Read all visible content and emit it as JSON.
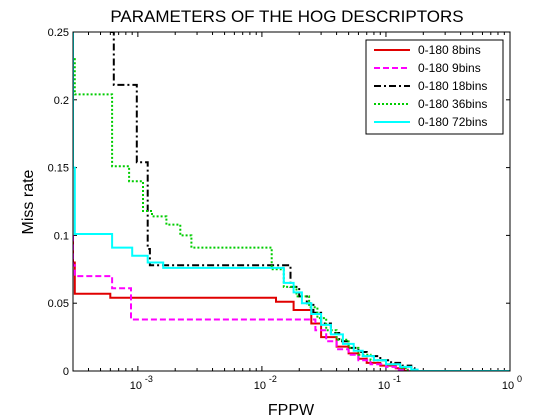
{
  "chart_data": {
    "type": "line",
    "title": "PARAMETERS OF THE HOG DESCRIPTORS",
    "xlabel": "FPPW",
    "ylabel": "Miss rate",
    "x_scale": "log",
    "xlim": [
      0.0003,
      1
    ],
    "ylim": [
      0,
      0.25
    ],
    "x_ticks": [
      {
        "value": 0.001,
        "base": "10",
        "exp": "-3"
      },
      {
        "value": 0.01,
        "base": "10",
        "exp": "-2"
      },
      {
        "value": 0.1,
        "base": "10",
        "exp": "-1"
      },
      {
        "value": 1,
        "base": "10",
        "exp": "0"
      }
    ],
    "y_ticks": [
      "0",
      "0.05",
      "0.1",
      "0.15",
      "0.2",
      "0.25"
    ],
    "grid": false,
    "legend_position": "top-right",
    "series": [
      {
        "name": "0-180 8bins",
        "color": "#e00000",
        "dash": "solid",
        "x": [
          0.0003,
          0.0003,
          0.00031,
          0.00031,
          0.0006,
          0.0006,
          0.013,
          0.013,
          0.018,
          0.018,
          0.025,
          0.025,
          0.03,
          0.03,
          0.04,
          0.04,
          0.05,
          0.05,
          0.06,
          0.06,
          0.07,
          0.07,
          0.09,
          0.09,
          0.12,
          0.12,
          0.14,
          0.14,
          1
        ],
        "y": [
          0.1,
          0.08,
          0.08,
          0.057,
          0.057,
          0.054,
          0.054,
          0.051,
          0.051,
          0.045,
          0.045,
          0.035,
          0.035,
          0.025,
          0.025,
          0.018,
          0.018,
          0.013,
          0.013,
          0.009,
          0.009,
          0.006,
          0.006,
          0.004,
          0.004,
          0.002,
          0.002,
          0,
          0
        ]
      },
      {
        "name": "0-180 9bins",
        "color": "#ff00ff",
        "dash": "dashed",
        "x": [
          0.0003,
          0.0003,
          0.00031,
          0.00031,
          0.00062,
          0.00062,
          0.00088,
          0.00088,
          0.027,
          0.027,
          0.033,
          0.033,
          0.04,
          0.04,
          0.05,
          0.05,
          0.06,
          0.06,
          0.075,
          0.075,
          0.1,
          0.1,
          0.12,
          0.12,
          0.15,
          0.15,
          1
        ],
        "y": [
          0.1,
          0.078,
          0.078,
          0.07,
          0.07,
          0.061,
          0.061,
          0.038,
          0.038,
          0.03,
          0.03,
          0.022,
          0.022,
          0.016,
          0.016,
          0.012,
          0.012,
          0.008,
          0.008,
          0.005,
          0.005,
          0.003,
          0.003,
          0.001,
          0.001,
          0,
          0
        ]
      },
      {
        "name": "0-180 18bins",
        "color": "#000000",
        "dash": "dashdot",
        "x": [
          0.0006,
          0.0006,
          0.00064,
          0.00064,
          0.00098,
          0.00098,
          0.0012,
          0.0012,
          0.00125,
          0.00125,
          0.017,
          0.017,
          0.02,
          0.02,
          0.023,
          0.023,
          0.026,
          0.026,
          0.03,
          0.03,
          0.036,
          0.036,
          0.042,
          0.042,
          0.05,
          0.05,
          0.06,
          0.06,
          0.07,
          0.07,
          0.09,
          0.09,
          0.11,
          0.11,
          0.13,
          0.13,
          0.16,
          0.16,
          0.17,
          0.17,
          1
        ],
        "y": [
          0.25,
          0.25,
          0.25,
          0.211,
          0.211,
          0.154,
          0.154,
          0.09,
          0.09,
          0.078,
          0.078,
          0.062,
          0.062,
          0.055,
          0.055,
          0.05,
          0.05,
          0.043,
          0.043,
          0.035,
          0.035,
          0.028,
          0.028,
          0.022,
          0.022,
          0.017,
          0.017,
          0.014,
          0.014,
          0.011,
          0.011,
          0.008,
          0.008,
          0.006,
          0.006,
          0.004,
          0.004,
          0.002,
          0.002,
          0,
          0
        ]
      },
      {
        "name": "0-180 36bins",
        "color": "#00cc00",
        "dash": "dotted",
        "x": [
          0.0003,
          0.0003,
          0.00031,
          0.00031,
          0.00062,
          0.00062,
          0.00085,
          0.00085,
          0.0011,
          0.0011,
          0.0013,
          0.0013,
          0.0017,
          0.0017,
          0.0022,
          0.0022,
          0.0027,
          0.0027,
          0.012,
          0.012,
          0.015,
          0.015,
          0.019,
          0.019,
          0.024,
          0.024,
          0.028,
          0.028,
          0.033,
          0.033,
          0.04,
          0.04,
          0.05,
          0.05,
          0.06,
          0.06,
          0.075,
          0.075,
          0.1,
          0.1,
          0.13,
          0.13,
          0.15,
          0.15,
          1
        ],
        "y": [
          0.25,
          0.23,
          0.23,
          0.204,
          0.204,
          0.151,
          0.151,
          0.14,
          0.14,
          0.118,
          0.118,
          0.114,
          0.114,
          0.108,
          0.108,
          0.1,
          0.1,
          0.091,
          0.091,
          0.075,
          0.075,
          0.062,
          0.062,
          0.055,
          0.055,
          0.047,
          0.047,
          0.039,
          0.039,
          0.03,
          0.03,
          0.023,
          0.023,
          0.017,
          0.017,
          0.012,
          0.012,
          0.008,
          0.008,
          0.005,
          0.005,
          0.002,
          0.002,
          0,
          0
        ]
      },
      {
        "name": "0-180 72bins",
        "color": "#00ffff",
        "dash": "solid",
        "x": [
          0.0003,
          0.0003,
          0.00031,
          0.00031,
          0.00062,
          0.00062,
          0.0009,
          0.0009,
          0.0012,
          0.0012,
          0.0016,
          0.0016,
          0.015,
          0.015,
          0.018,
          0.018,
          0.021,
          0.021,
          0.025,
          0.025,
          0.03,
          0.03,
          0.036,
          0.036,
          0.045,
          0.045,
          0.055,
          0.055,
          0.065,
          0.065,
          0.08,
          0.08,
          0.1,
          0.1,
          0.13,
          0.13,
          0.16,
          0.16,
          0.18,
          0.18,
          1
        ],
        "y": [
          0.25,
          0.15,
          0.15,
          0.101,
          0.101,
          0.091,
          0.091,
          0.085,
          0.085,
          0.08,
          0.08,
          0.076,
          0.076,
          0.065,
          0.065,
          0.058,
          0.058,
          0.05,
          0.05,
          0.042,
          0.042,
          0.034,
          0.034,
          0.027,
          0.027,
          0.02,
          0.02,
          0.015,
          0.015,
          0.011,
          0.011,
          0.008,
          0.008,
          0.005,
          0.005,
          0.003,
          0.003,
          0.001,
          0.001,
          0,
          0
        ]
      }
    ]
  }
}
